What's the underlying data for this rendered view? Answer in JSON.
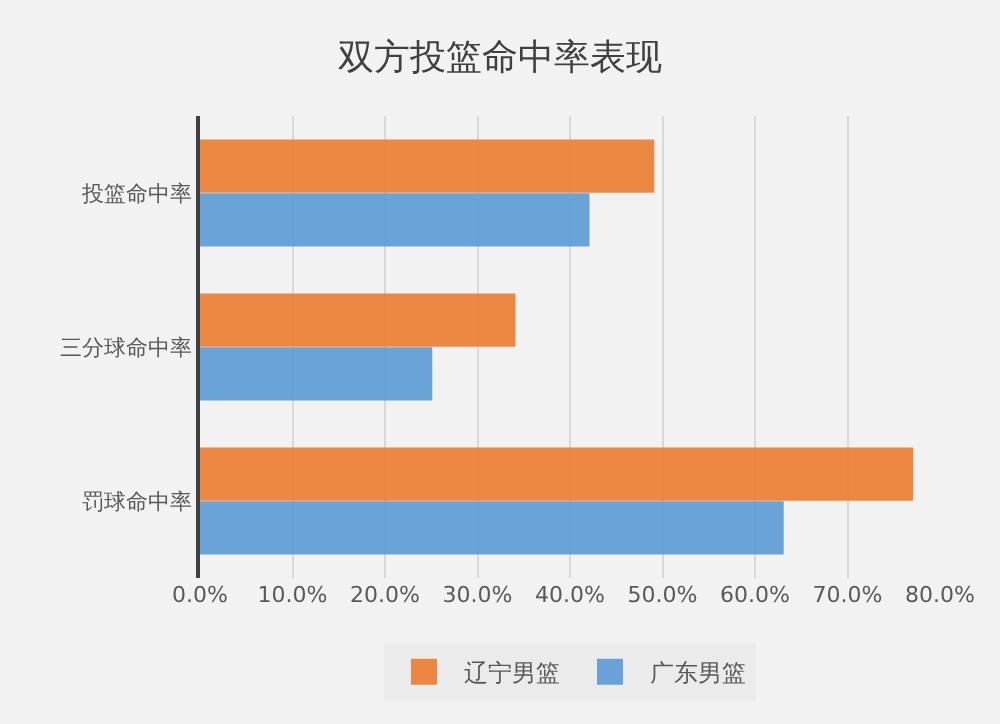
{
  "chart_data": {
    "type": "bar",
    "orientation": "horizontal",
    "title": "双方投篮命中率表现",
    "categories": [
      "投篮命中率",
      "三分球命中率",
      "罚球命中率"
    ],
    "series": [
      {
        "name": "辽宁男篮",
        "color": "#ed7d31",
        "values": [
          0.49,
          0.34,
          0.77
        ]
      },
      {
        "name": "广东男篮",
        "color": "#5b9bd5",
        "values": [
          0.42,
          0.25,
          0.63
        ]
      }
    ],
    "xlim": [
      0,
      0.8
    ],
    "xticks": [
      {
        "value": 0,
        "label": "0.0%"
      },
      {
        "value": 0.1,
        "label": "10.0%"
      },
      {
        "value": 0.2,
        "label": "20.0%"
      },
      {
        "value": 0.3,
        "label": "30.0%"
      },
      {
        "value": 0.4,
        "label": "40.0%"
      },
      {
        "value": 0.5,
        "label": "50.0%"
      },
      {
        "value": 0.6,
        "label": "60.0%"
      },
      {
        "value": 0.7,
        "label": "70.0%"
      },
      {
        "value": 0.8,
        "label": "80.0%"
      }
    ],
    "grid": "x",
    "legend": "bottom"
  }
}
